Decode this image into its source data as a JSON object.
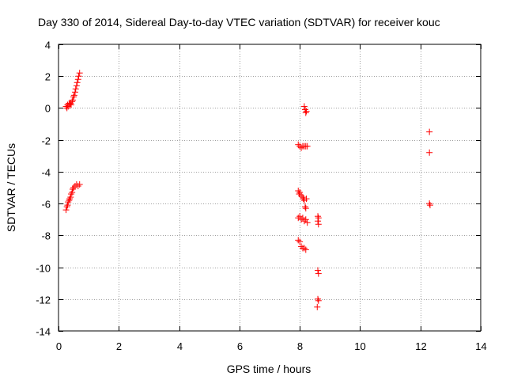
{
  "chart_data": {
    "type": "scatter",
    "title": "Day 330 of 2014, Sidereal Day-to-day VTEC variation (SDTVAR) for receiver kouc",
    "xlabel": "GPS time / hours",
    "ylabel": "SDTVAR / TECUs",
    "xlim": [
      0,
      14
    ],
    "ylim": [
      -14,
      4
    ],
    "xticks": [
      0,
      2,
      4,
      6,
      8,
      10,
      12,
      14
    ],
    "yticks": [
      -14,
      -12,
      -10,
      -8,
      -6,
      -4,
      -2,
      0,
      2,
      4
    ],
    "grid": true,
    "marker": "+",
    "color": "#ff0000",
    "series": [
      {
        "name": "SDTVAR",
        "points": [
          [
            0.25,
            0.1
          ],
          [
            0.28,
            0.0
          ],
          [
            0.3,
            0.2
          ],
          [
            0.32,
            0.1
          ],
          [
            0.35,
            0.3
          ],
          [
            0.37,
            0.2
          ],
          [
            0.4,
            0.3
          ],
          [
            0.42,
            0.2
          ],
          [
            0.45,
            0.4
          ],
          [
            0.47,
            0.5
          ],
          [
            0.5,
            0.7
          ],
          [
            0.52,
            0.8
          ],
          [
            0.55,
            1.0
          ],
          [
            0.57,
            1.2
          ],
          [
            0.6,
            1.4
          ],
          [
            0.62,
            1.6
          ],
          [
            0.65,
            1.8
          ],
          [
            0.67,
            2.0
          ],
          [
            0.7,
            2.2
          ],
          [
            0.25,
            -6.4
          ],
          [
            0.28,
            -6.2
          ],
          [
            0.3,
            -6.1
          ],
          [
            0.32,
            -5.9
          ],
          [
            0.35,
            -5.8
          ],
          [
            0.37,
            -5.7
          ],
          [
            0.4,
            -5.6
          ],
          [
            0.42,
            -5.4
          ],
          [
            0.45,
            -5.3
          ],
          [
            0.47,
            -5.1
          ],
          [
            0.5,
            -5.0
          ],
          [
            0.55,
            -4.9
          ],
          [
            0.6,
            -4.8
          ],
          [
            0.65,
            -4.9
          ],
          [
            0.7,
            -4.8
          ],
          [
            8.15,
            0.1
          ],
          [
            8.18,
            -0.1
          ],
          [
            8.2,
            -0.3
          ],
          [
            8.22,
            -0.2
          ],
          [
            7.95,
            -2.3
          ],
          [
            8.0,
            -2.4
          ],
          [
            8.05,
            -2.5
          ],
          [
            8.1,
            -2.4
          ],
          [
            8.15,
            -2.4
          ],
          [
            8.2,
            -2.4
          ],
          [
            8.25,
            -2.4
          ],
          [
            7.95,
            -5.2
          ],
          [
            7.98,
            -5.4
          ],
          [
            8.0,
            -5.3
          ],
          [
            8.05,
            -5.5
          ],
          [
            8.1,
            -5.6
          ],
          [
            8.12,
            -5.7
          ],
          [
            8.15,
            -5.8
          ],
          [
            8.18,
            -6.2
          ],
          [
            8.2,
            -6.3
          ],
          [
            8.22,
            -5.7
          ],
          [
            7.95,
            -6.9
          ],
          [
            8.0,
            -6.8
          ],
          [
            8.05,
            -7.0
          ],
          [
            8.1,
            -6.9
          ],
          [
            8.15,
            -7.1
          ],
          [
            8.2,
            -7.0
          ],
          [
            8.25,
            -7.2
          ],
          [
            7.95,
            -8.3
          ],
          [
            8.0,
            -8.4
          ],
          [
            8.05,
            -8.7
          ],
          [
            8.1,
            -8.8
          ],
          [
            8.15,
            -8.8
          ],
          [
            8.2,
            -8.9
          ],
          [
            8.6,
            -6.8
          ],
          [
            8.62,
            -6.9
          ],
          [
            8.6,
            -7.1
          ],
          [
            8.62,
            -7.3
          ],
          [
            8.6,
            -10.2
          ],
          [
            8.62,
            -10.4
          ],
          [
            8.6,
            -12.0
          ],
          [
            8.62,
            -12.1
          ],
          [
            8.58,
            -12.5
          ],
          [
            12.3,
            -1.5
          ],
          [
            12.3,
            -2.8
          ],
          [
            12.3,
            -6.0
          ],
          [
            12.32,
            -6.1
          ]
        ]
      }
    ]
  }
}
